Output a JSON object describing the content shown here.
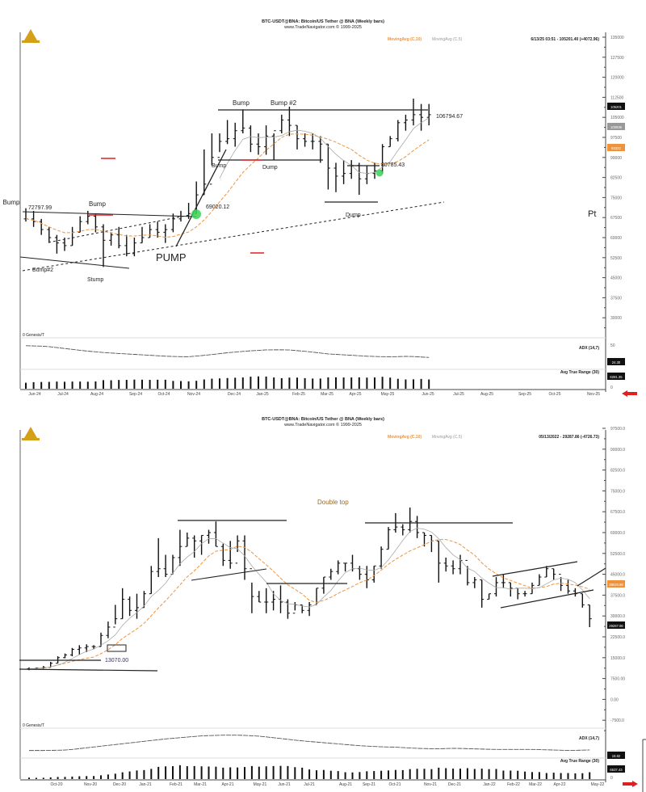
{
  "colors": {
    "bars": "#111111",
    "ma10": "#f0923a",
    "ma5": "#aaaaaa",
    "accent_red": "#e02020",
    "logo": "#d4a017",
    "signal_green": "#39d353"
  },
  "chart_data": [
    {
      "type": "bar",
      "title": "BTC-USDT@BNA: Bitcoin/US Tether @ BNA (Weekly bars)",
      "subtitle": "www.TradeNavigator.com © 1999-2025",
      "legend": [
        "MovingAvg (C,10)",
        "MovingAvg (C,5)"
      ],
      "readout": "6/13/25 03:51 - 105201.40 (+4072.96)",
      "price_unit": "thousands USD",
      "ylim": [
        22500,
        135000
      ],
      "y_ticks": [
        "135000",
        "127500",
        "120000",
        "112500",
        "105000",
        "97500",
        "90000",
        "82500",
        "75000",
        "67500",
        "60000",
        "52500",
        "45000",
        "37500",
        "30000"
      ],
      "x_ticks": [
        "Jun-24",
        "Jul-24",
        "Aug-24",
        "Sep-24",
        "Oct-24",
        "Nov-24",
        "Dec-24",
        "Jan-25",
        "Feb-25",
        "Mar-25",
        "Apr-25",
        "May-25",
        "Jun-25",
        "Jul-25",
        "Aug-25",
        "Sep-25",
        "Oct-25",
        "Nov-25"
      ],
      "bars_hlc": [
        [
          71,
          66,
          67
        ],
        [
          70,
          64,
          66
        ],
        [
          67,
          61,
          63
        ],
        [
          64,
          58,
          60
        ],
        [
          61,
          54,
          58
        ],
        [
          60,
          55,
          57
        ],
        [
          64,
          57,
          62
        ],
        [
          68,
          62,
          66
        ],
        [
          70,
          65,
          68
        ],
        [
          69,
          62,
          64
        ],
        [
          65,
          49,
          59
        ],
        [
          62,
          57,
          61
        ],
        [
          64,
          56,
          57
        ],
        [
          61,
          53,
          54
        ],
        [
          60,
          53,
          58
        ],
        [
          64,
          58,
          60
        ],
        [
          65,
          60,
          63
        ],
        [
          66,
          60,
          62
        ],
        [
          65,
          58,
          63
        ],
        [
          69,
          62,
          67
        ],
        [
          70,
          66,
          68
        ],
        [
          73,
          67,
          69
        ],
        [
          81,
          69,
          76
        ],
        [
          93,
          76,
          80
        ],
        [
          99,
          87,
          90
        ],
        [
          99,
          92,
          96
        ],
        [
          104,
          95,
          97
        ],
        [
          103,
          94,
          100
        ],
        [
          108,
          99,
          101
        ],
        [
          102,
          92,
          95
        ],
        [
          99,
          91,
          94
        ],
        [
          102,
          91,
          98
        ],
        [
          99,
          89,
          100
        ],
        [
          106,
          99,
          104
        ],
        [
          109,
          98,
          102
        ],
        [
          102,
          93,
          97
        ],
        [
          99,
          94,
          96
        ],
        [
          99,
          93,
          96
        ],
        [
          98,
          88,
          95
        ],
        [
          95,
          78,
          86
        ],
        [
          88,
          77,
          83
        ],
        [
          89,
          80,
          84
        ],
        [
          89,
          82,
          87
        ],
        [
          88,
          76,
          82
        ],
        [
          87,
          80,
          84
        ],
        [
          88,
          82,
          85
        ],
        [
          95,
          84,
          94
        ],
        [
          98,
          94,
          97
        ],
        [
          104,
          96,
          103
        ],
        [
          106,
          100,
          104
        ],
        [
          112,
          102,
          106
        ],
        [
          110,
          100,
          105
        ],
        [
          110,
          102,
          106
        ]
      ],
      "adx_anchors": [
        47,
        46,
        42,
        38,
        35,
        33,
        31,
        29,
        28,
        31,
        35,
        38,
        40,
        40,
        37,
        33,
        31,
        29,
        28,
        29,
        27
      ],
      "pane_label": "0 Genesis/T",
      "adx_label": "ADX (14,7)",
      "atr_label": "Avg True Range (30)",
      "adx_tick": "50",
      "atr_tick": "0",
      "badges": {
        "price": "105201",
        "ma5": "100936",
        "ma10": "93322",
        "adx": "24.30",
        "atr": "6281.35"
      },
      "annotations": [
        "Bump",
        "72797.99",
        "Bump",
        "Bump#2",
        "Stump",
        "PUMP",
        "69020.12",
        "Bump",
        "Dump",
        "Bump",
        "Bump #2",
        "106794.67",
        "80785.43",
        "Dump",
        "Pt"
      ]
    },
    {
      "type": "bar",
      "title": "BTC-USDT@BNA: Bitcoin/US Tether @ BNA (Weekly bars)",
      "subtitle": "www.TradeNavigator.com © 1999-2025",
      "legend": [
        "MovingAvg (C,10)",
        "MovingAvg (C,5)"
      ],
      "readout": "05/13/2022 - 29287.86 (-4726.73)",
      "price_unit": "thousands USD",
      "ylim": [
        -7500,
        97500
      ],
      "y_ticks": [
        "97500.0",
        "90000.0",
        "82500.0",
        "75000.0",
        "67500.0",
        "60000.0",
        "52500.0",
        "45000.0",
        "37500.0",
        "30000.0",
        "22500.0",
        "15000.0",
        "7500.00",
        "0.00",
        "-7500.0"
      ],
      "x_ticks": [
        "Oct-20",
        "Nov-20",
        "Dec-20",
        "Jan-21",
        "Feb-21",
        "Mar-21",
        "Apr-21",
        "May-21",
        "Jun-21",
        "Jul-21",
        "Aug-21",
        "Sep-21",
        "Oct-21",
        "Nov-21",
        "Dec-21",
        "Jan-22",
        "Feb-22",
        "Mar-22",
        "Apr-22",
        "May-22"
      ],
      "bars_hlc": [
        [
          11.5,
          10.5,
          11
        ],
        [
          11.5,
          10.8,
          11.3
        ],
        [
          12,
          11,
          11.5
        ],
        [
          13.5,
          11.5,
          13
        ],
        [
          15.5,
          13,
          15
        ],
        [
          16.5,
          14.8,
          16
        ],
        [
          18.5,
          15.5,
          18
        ],
        [
          19.5,
          16,
          18.5
        ],
        [
          19.8,
          17,
          19
        ],
        [
          19.5,
          18,
          19
        ],
        [
          24,
          19,
          23
        ],
        [
          28,
          22,
          26
        ],
        [
          34,
          27,
          29
        ],
        [
          40,
          29,
          36
        ],
        [
          37,
          30,
          32
        ],
        [
          38,
          29,
          33
        ],
        [
          39,
          33,
          38
        ],
        [
          48,
          38,
          46
        ],
        [
          58,
          44,
          47
        ],
        [
          52,
          44,
          45
        ],
        [
          52,
          45,
          51
        ],
        [
          61,
          48,
          55
        ],
        [
          60,
          55,
          58
        ],
        [
          59,
          51,
          57
        ],
        [
          59,
          52,
          59
        ],
        [
          61,
          56,
          60
        ],
        [
          64,
          55,
          55
        ],
        [
          56,
          48,
          50
        ],
        [
          57,
          47,
          49
        ],
        [
          59,
          53,
          57
        ],
        [
          59,
          43,
          47
        ],
        [
          42,
          31,
          37
        ],
        [
          39,
          35,
          35
        ],
        [
          40,
          31,
          35
        ],
        [
          39,
          32,
          36
        ],
        [
          41,
          31,
          35
        ],
        [
          36,
          29,
          31
        ],
        [
          35,
          32,
          34
        ],
        [
          34,
          31,
          32
        ],
        [
          35,
          30,
          34
        ],
        [
          40,
          34,
          40
        ],
        [
          44,
          38,
          44
        ],
        [
          47,
          43,
          46
        ],
        [
          50,
          45,
          49
        ],
        [
          49,
          46,
          49
        ],
        [
          52,
          46,
          47
        ],
        [
          48,
          43,
          45
        ],
        [
          48,
          40,
          43
        ],
        [
          48,
          42,
          48
        ],
        [
          55,
          47,
          54
        ],
        [
          62,
          54,
          61
        ],
        [
          67,
          60,
          62
        ],
        [
          63,
          59,
          61
        ],
        [
          69,
          60,
          64
        ],
        [
          66,
          58,
          60
        ],
        [
          60,
          55,
          59
        ],
        [
          59,
          53,
          57
        ],
        [
          57,
          42,
          49
        ],
        [
          51,
          46,
          48
        ],
        [
          50,
          45,
          47
        ],
        [
          52,
          45,
          50
        ],
        [
          48,
          41,
          42
        ],
        [
          44,
          40,
          43
        ],
        [
          43,
          33,
          36
        ],
        [
          38,
          36,
          38
        ],
        [
          44,
          37,
          42
        ],
        [
          45,
          40,
          42
        ],
        [
          42,
          37,
          40
        ],
        [
          40,
          36,
          38
        ],
        [
          39,
          37,
          38
        ],
        [
          42,
          38,
          41
        ],
        [
          45,
          41,
          44
        ],
        [
          48,
          44,
          47
        ],
        [
          47,
          43,
          45
        ],
        [
          44,
          39,
          41
        ],
        [
          43,
          38,
          39
        ],
        [
          40,
          37,
          38
        ],
        [
          38,
          33,
          34
        ],
        [
          34,
          26,
          29
        ]
      ],
      "adx_anchors": [
        20,
        20,
        21,
        25,
        29,
        33,
        37,
        41,
        44,
        47,
        48,
        48,
        46,
        42,
        38,
        35,
        32,
        29,
        27,
        26,
        24,
        23,
        24,
        23,
        22,
        22,
        22,
        21,
        20,
        21
      ],
      "pane_label": "0 Genesis/T",
      "adx_label": "ADX (14,7)",
      "atr_label": "Avg True Range (30)",
      "adx_tick": "",
      "atr_tick": "0",
      "badges": {
        "price": "29287.86",
        "ma10": "38020.88",
        "adx": "18.82",
        "atr": "6537.43"
      },
      "annotations": [
        "Double top",
        "13070.00"
      ]
    }
  ]
}
